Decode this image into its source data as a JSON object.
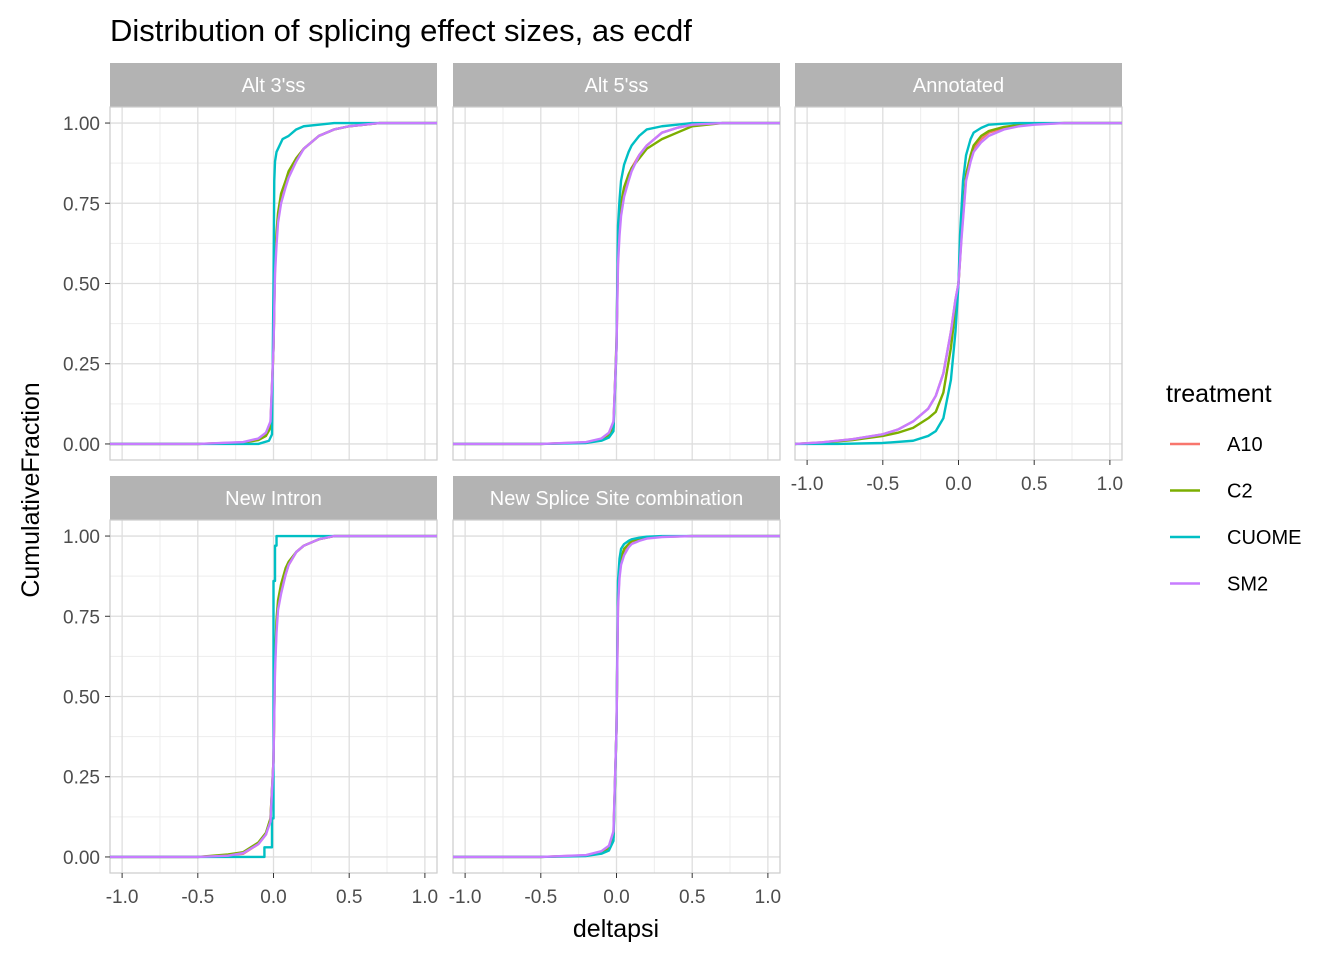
{
  "chart_data": {
    "type": "line",
    "title": "Distribution of splicing effect sizes, as ecdf",
    "xlabel": "deltapsi",
    "ylabel": "CumulativeFraction",
    "xlim": [
      -1.08,
      1.08
    ],
    "ylim": [
      -0.05,
      1.05
    ],
    "x_ticks": [
      -1.0,
      -0.5,
      0.0,
      0.5,
      1.0
    ],
    "x_tick_labels": [
      "-1.0",
      "-0.5",
      "0.0",
      "0.5",
      "1.0"
    ],
    "y_ticks": [
      0.0,
      0.25,
      0.5,
      0.75,
      1.0
    ],
    "y_tick_labels": [
      "0.00",
      "0.25",
      "0.50",
      "0.75",
      "1.00"
    ],
    "legend": {
      "title": "treatment",
      "position": "right",
      "entries": [
        {
          "name": "A10",
          "color": "#F8766D"
        },
        {
          "name": "C2",
          "color": "#7CAE00"
        },
        {
          "name": "CUOME",
          "color": "#00BFC4"
        },
        {
          "name": "SM2",
          "color": "#C77CFF"
        }
      ]
    },
    "panels": [
      {
        "label": "Alt 3'ss",
        "series": [
          {
            "name": "A10",
            "x": [
              -1.08,
              -0.5,
              -0.2,
              -0.1,
              -0.05,
              -0.02,
              0.0,
              0.01,
              0.02,
              0.03,
              0.05,
              0.08,
              0.1,
              0.15,
              0.2,
              0.3,
              0.4,
              0.5,
              0.7,
              1.08
            ],
            "y": [
              0.0,
              0.0,
              0.005,
              0.015,
              0.03,
              0.06,
              0.3,
              0.55,
              0.64,
              0.7,
              0.76,
              0.81,
              0.84,
              0.89,
              0.92,
              0.96,
              0.98,
              0.99,
              1.0,
              1.0
            ]
          },
          {
            "name": "C2",
            "x": [
              -1.08,
              -0.5,
              -0.2,
              -0.1,
              -0.05,
              -0.02,
              0.0,
              0.01,
              0.02,
              0.03,
              0.05,
              0.08,
              0.1,
              0.15,
              0.2,
              0.3,
              0.4,
              0.5,
              0.7,
              1.08
            ],
            "y": [
              0.0,
              0.0,
              0.004,
              0.012,
              0.025,
              0.05,
              0.3,
              0.57,
              0.66,
              0.72,
              0.78,
              0.82,
              0.85,
              0.89,
              0.92,
              0.96,
              0.98,
              0.99,
              1.0,
              1.0
            ]
          },
          {
            "name": "CUOME",
            "x": [
              -1.08,
              -0.5,
              -0.1,
              -0.03,
              -0.01,
              0.0,
              0.005,
              0.01,
              0.02,
              0.04,
              0.06,
              0.1,
              0.15,
              0.2,
              0.3,
              0.4,
              1.08
            ],
            "y": [
              0.0,
              0.0,
              0.0,
              0.01,
              0.03,
              0.5,
              0.82,
              0.88,
              0.91,
              0.93,
              0.95,
              0.96,
              0.98,
              0.99,
              0.995,
              1.0,
              1.0
            ]
          },
          {
            "name": "SM2",
            "x": [
              -1.08,
              -0.5,
              -0.2,
              -0.1,
              -0.05,
              -0.02,
              0.0,
              0.01,
              0.02,
              0.03,
              0.05,
              0.08,
              0.1,
              0.15,
              0.2,
              0.3,
              0.4,
              0.5,
              0.7,
              1.08
            ],
            "y": [
              0.0,
              0.0,
              0.006,
              0.017,
              0.035,
              0.07,
              0.3,
              0.53,
              0.62,
              0.69,
              0.75,
              0.8,
              0.83,
              0.88,
              0.92,
              0.96,
              0.98,
              0.99,
              1.0,
              1.0
            ]
          }
        ]
      },
      {
        "label": "Alt 5'ss",
        "series": [
          {
            "name": "A10",
            "x": [
              -1.08,
              -0.5,
              -0.2,
              -0.1,
              -0.05,
              -0.02,
              0.0,
              0.01,
              0.02,
              0.03,
              0.05,
              0.08,
              0.1,
              0.15,
              0.2,
              0.3,
              0.4,
              0.5,
              0.7,
              1.08
            ],
            "y": [
              0.0,
              0.0,
              0.005,
              0.015,
              0.03,
              0.06,
              0.3,
              0.58,
              0.67,
              0.72,
              0.78,
              0.83,
              0.86,
              0.9,
              0.93,
              0.97,
              0.985,
              0.995,
              1.0,
              1.0
            ]
          },
          {
            "name": "C2",
            "x": [
              -1.08,
              -0.5,
              -0.2,
              -0.1,
              -0.05,
              -0.02,
              0.0,
              0.01,
              0.02,
              0.03,
              0.05,
              0.08,
              0.1,
              0.15,
              0.2,
              0.3,
              0.4,
              0.5,
              0.7,
              1.08
            ],
            "y": [
              0.0,
              0.0,
              0.004,
              0.012,
              0.025,
              0.05,
              0.32,
              0.62,
              0.7,
              0.75,
              0.8,
              0.84,
              0.86,
              0.89,
              0.92,
              0.95,
              0.97,
              0.99,
              1.0,
              1.0
            ]
          },
          {
            "name": "CUOME",
            "x": [
              -1.08,
              -0.5,
              -0.2,
              -0.1,
              -0.05,
              -0.02,
              0.0,
              0.01,
              0.02,
              0.03,
              0.05,
              0.08,
              0.1,
              0.15,
              0.2,
              0.3,
              0.4,
              0.5,
              1.08
            ],
            "y": [
              0.0,
              0.0,
              0.003,
              0.01,
              0.02,
              0.04,
              0.3,
              0.68,
              0.76,
              0.82,
              0.87,
              0.91,
              0.93,
              0.96,
              0.98,
              0.99,
              0.995,
              1.0,
              1.0
            ]
          },
          {
            "name": "SM2",
            "x": [
              -1.08,
              -0.5,
              -0.2,
              -0.1,
              -0.05,
              -0.02,
              0.0,
              0.01,
              0.02,
              0.03,
              0.05,
              0.08,
              0.1,
              0.15,
              0.2,
              0.3,
              0.4,
              0.5,
              0.7,
              1.08
            ],
            "y": [
              0.0,
              0.0,
              0.006,
              0.017,
              0.035,
              0.07,
              0.3,
              0.56,
              0.65,
              0.71,
              0.77,
              0.82,
              0.85,
              0.9,
              0.93,
              0.97,
              0.985,
              0.995,
              1.0,
              1.0
            ]
          }
        ]
      },
      {
        "label": "Annotated",
        "series": [
          {
            "name": "A10",
            "x": [
              -1.08,
              -0.9,
              -0.7,
              -0.5,
              -0.4,
              -0.3,
              -0.2,
              -0.15,
              -0.1,
              -0.05,
              -0.02,
              0.0,
              0.02,
              0.05,
              0.08,
              0.1,
              0.15,
              0.2,
              0.3,
              0.4,
              0.5,
              0.7,
              1.08
            ],
            "y": [
              0.0,
              0.005,
              0.015,
              0.03,
              0.045,
              0.07,
              0.11,
              0.15,
              0.22,
              0.35,
              0.45,
              0.5,
              0.65,
              0.83,
              0.89,
              0.92,
              0.95,
              0.97,
              0.985,
              0.993,
              0.997,
              1.0,
              1.0
            ]
          },
          {
            "name": "C2",
            "x": [
              -1.08,
              -0.9,
              -0.7,
              -0.5,
              -0.4,
              -0.3,
              -0.2,
              -0.15,
              -0.1,
              -0.05,
              -0.02,
              0.0,
              0.02,
              0.05,
              0.08,
              0.1,
              0.15,
              0.2,
              0.3,
              0.4,
              0.5,
              0.7,
              1.08
            ],
            "y": [
              0.0,
              0.004,
              0.012,
              0.025,
              0.035,
              0.05,
              0.08,
              0.1,
              0.16,
              0.3,
              0.42,
              0.5,
              0.66,
              0.84,
              0.9,
              0.93,
              0.96,
              0.975,
              0.988,
              0.994,
              0.998,
              1.0,
              1.0
            ]
          },
          {
            "name": "CUOME",
            "x": [
              -1.08,
              -0.8,
              -0.5,
              -0.3,
              -0.2,
              -0.15,
              -0.1,
              -0.05,
              -0.02,
              0.0,
              0.01,
              0.03,
              0.05,
              0.08,
              0.1,
              0.15,
              0.2,
              0.3,
              0.4,
              1.08
            ],
            "y": [
              0.0,
              0.0,
              0.003,
              0.01,
              0.025,
              0.04,
              0.08,
              0.2,
              0.35,
              0.5,
              0.65,
              0.82,
              0.9,
              0.95,
              0.97,
              0.985,
              0.995,
              0.998,
              1.0,
              1.0
            ]
          },
          {
            "name": "SM2",
            "x": [
              -1.08,
              -0.9,
              -0.7,
              -0.5,
              -0.4,
              -0.3,
              -0.2,
              -0.15,
              -0.1,
              -0.05,
              -0.02,
              0.0,
              0.02,
              0.05,
              0.08,
              0.1,
              0.15,
              0.2,
              0.3,
              0.4,
              0.5,
              0.7,
              1.08
            ],
            "y": [
              0.0,
              0.005,
              0.015,
              0.03,
              0.045,
              0.07,
              0.11,
              0.15,
              0.22,
              0.35,
              0.45,
              0.5,
              0.64,
              0.82,
              0.88,
              0.91,
              0.94,
              0.96,
              0.98,
              0.99,
              0.995,
              1.0,
              1.0
            ]
          }
        ]
      },
      {
        "label": "New Intron",
        "series": [
          {
            "name": "A10",
            "x": [
              -1.08,
              -0.5,
              -0.3,
              -0.2,
              -0.1,
              -0.05,
              -0.02,
              0.0,
              0.01,
              0.02,
              0.03,
              0.05,
              0.08,
              0.1,
              0.15,
              0.2,
              0.3,
              0.4,
              1.08
            ],
            "y": [
              0.0,
              0.0,
              0.005,
              0.01,
              0.04,
              0.07,
              0.12,
              0.3,
              0.6,
              0.72,
              0.78,
              0.83,
              0.88,
              0.91,
              0.95,
              0.97,
              0.99,
              1.0,
              1.0
            ]
          },
          {
            "name": "C2",
            "x": [
              -1.08,
              -0.5,
              -0.3,
              -0.2,
              -0.1,
              -0.05,
              -0.02,
              0.0,
              0.01,
              0.02,
              0.03,
              0.05,
              0.08,
              0.1,
              0.15,
              0.2,
              0.3,
              0.4,
              1.08
            ],
            "y": [
              0.0,
              0.0,
              0.008,
              0.015,
              0.045,
              0.075,
              0.12,
              0.3,
              0.62,
              0.74,
              0.8,
              0.85,
              0.9,
              0.92,
              0.95,
              0.97,
              0.99,
              1.0,
              1.0
            ]
          },
          {
            "name": "CUOME",
            "x": [
              -1.08,
              -0.06,
              -0.06,
              -0.01,
              -0.01,
              0.0,
              0.0,
              0.01,
              0.01,
              0.02,
              0.02,
              1.08
            ],
            "y": [
              0.0,
              0.0,
              0.03,
              0.03,
              0.12,
              0.12,
              0.86,
              0.86,
              0.97,
              0.97,
              1.0,
              1.0
            ]
          },
          {
            "name": "SM2",
            "x": [
              -1.08,
              -0.5,
              -0.3,
              -0.2,
              -0.1,
              -0.05,
              -0.02,
              0.0,
              0.01,
              0.02,
              0.03,
              0.05,
              0.08,
              0.1,
              0.15,
              0.2,
              0.3,
              0.4,
              1.08
            ],
            "y": [
              0.0,
              0.0,
              0.004,
              0.012,
              0.04,
              0.07,
              0.11,
              0.3,
              0.58,
              0.7,
              0.77,
              0.82,
              0.88,
              0.91,
              0.95,
              0.97,
              0.99,
              1.0,
              1.0
            ]
          }
        ]
      },
      {
        "label": "New Splice Site combination",
        "series": [
          {
            "name": "A10",
            "x": [
              -1.08,
              -0.5,
              -0.2,
              -0.1,
              -0.05,
              -0.02,
              0.0,
              0.01,
              0.02,
              0.03,
              0.05,
              0.08,
              0.1,
              0.15,
              0.2,
              0.3,
              0.5,
              1.08
            ],
            "y": [
              0.0,
              0.0,
              0.005,
              0.015,
              0.03,
              0.07,
              0.4,
              0.8,
              0.88,
              0.92,
              0.95,
              0.97,
              0.98,
              0.99,
              0.995,
              0.998,
              1.0,
              1.0
            ]
          },
          {
            "name": "C2",
            "x": [
              -1.08,
              -0.5,
              -0.2,
              -0.1,
              -0.05,
              -0.02,
              0.0,
              0.01,
              0.02,
              0.03,
              0.05,
              0.08,
              0.1,
              0.15,
              0.2,
              0.3,
              0.5,
              1.08
            ],
            "y": [
              0.0,
              0.0,
              0.004,
              0.012,
              0.025,
              0.06,
              0.4,
              0.82,
              0.9,
              0.93,
              0.96,
              0.975,
              0.985,
              0.99,
              0.995,
              0.998,
              1.0,
              1.0
            ]
          },
          {
            "name": "CUOME",
            "x": [
              -1.08,
              -0.5,
              -0.2,
              -0.1,
              -0.05,
              -0.02,
              0.0,
              0.01,
              0.02,
              0.03,
              0.05,
              0.08,
              0.1,
              0.15,
              0.2,
              0.3,
              1.08
            ],
            "y": [
              0.0,
              0.0,
              0.003,
              0.01,
              0.02,
              0.05,
              0.4,
              0.86,
              0.93,
              0.96,
              0.975,
              0.985,
              0.99,
              0.995,
              0.998,
              1.0,
              1.0
            ]
          },
          {
            "name": "SM2",
            "x": [
              -1.08,
              -0.5,
              -0.2,
              -0.1,
              -0.05,
              -0.02,
              0.0,
              0.01,
              0.02,
              0.03,
              0.05,
              0.08,
              0.1,
              0.15,
              0.2,
              0.3,
              0.5,
              1.08
            ],
            "y": [
              0.0,
              0.0,
              0.006,
              0.018,
              0.035,
              0.08,
              0.4,
              0.78,
              0.87,
              0.91,
              0.94,
              0.965,
              0.975,
              0.985,
              0.992,
              0.997,
              1.0,
              1.0
            ]
          }
        ]
      }
    ]
  }
}
